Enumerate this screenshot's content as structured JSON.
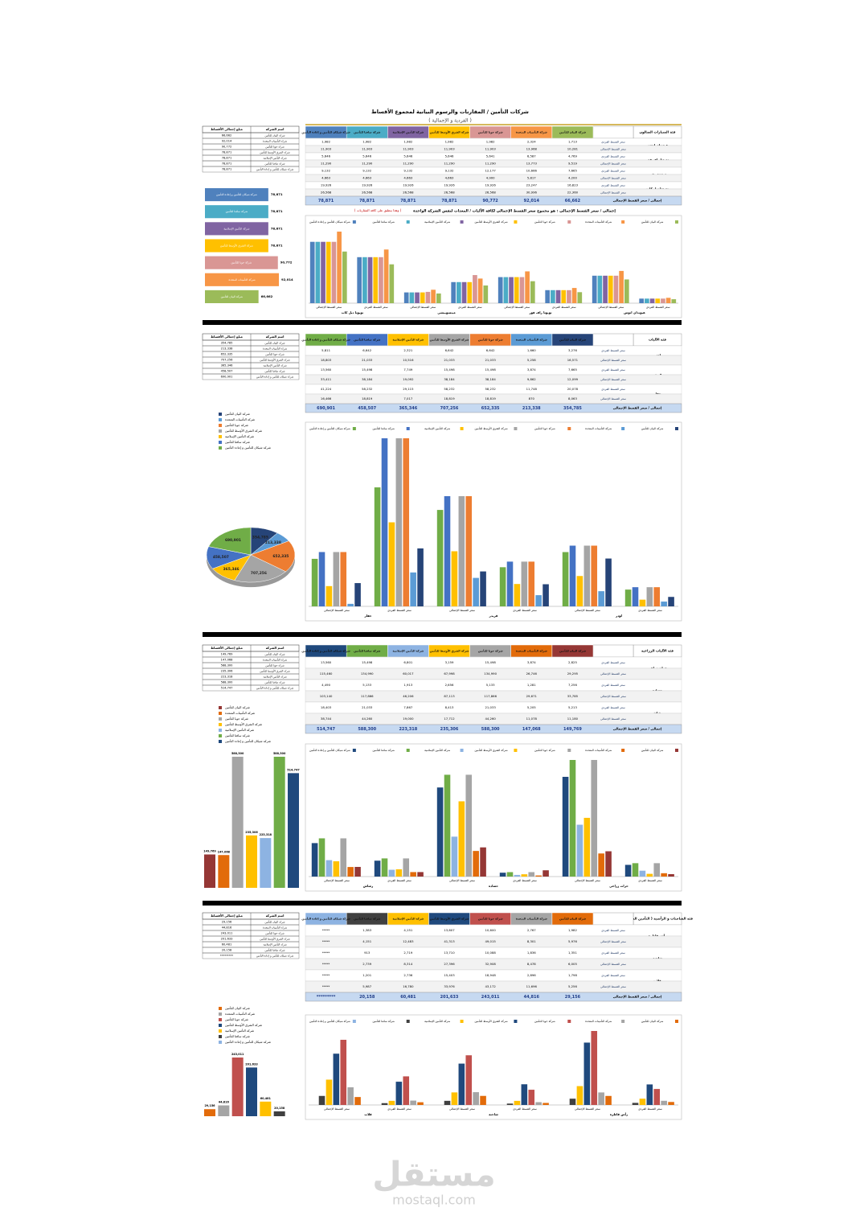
{
  "header": {
    "title": "شركات التأمين / المقارنات والرسوم البيانية لمجموع الأقساط",
    "subtitle": "( الفردية و الإجمالية )"
  },
  "companies": [
    "شركة البيان للتأمين",
    "شركة التأمينات المتحدة",
    "شركة جوبا للتأمين",
    "شركة الشرق الأوسط للتأمين",
    "شركة التأمين الإسلامية",
    "شركة سافنا للتأمين",
    "شركة شيكان للتأمين و إعادة التأمين"
  ],
  "summary_headers": [
    "اسم الشركة",
    "مبلغ إجمالي الأقساط"
  ],
  "sections": [
    {
      "table_title": "فئة السيارات الصالون",
      "colors": [
        "#9bbb59",
        "#f79646",
        "#d99694",
        "#ffc000",
        "#8064a2",
        "#4bacc6",
        "#4f81bd"
      ],
      "rows": [
        {
          "group": "هيونداي اتوس",
          "type": "سعر القسط الفردي",
          "values": [
            1713,
            2324,
            1982,
            1982,
            1982,
            1982,
            1982
          ],
          "value_labels": [
            "1,713",
            "2,324",
            "1,982",
            "1,982",
            "1,982",
            "1,982",
            "1,982"
          ]
        },
        {
          "type": "سعر القسط الإجمالي",
          "values": [
            10281,
            13968,
            11903,
            11903,
            11903,
            11903,
            11903
          ],
          "value_labels": [
            "10,281",
            "13,968",
            "11,903",
            "11,903",
            "11,903",
            "11,903",
            "11,903"
          ]
        },
        {
          "group": "تويوتا راف فور",
          "type": "سعر القسط الفردي",
          "values": [
            4769,
            6587,
            5641,
            5646,
            5646,
            5646,
            5646
          ],
          "value_labels": [
            "4,769",
            "6,587",
            "5,641",
            "5,646",
            "5,646",
            "5,646",
            "5,646"
          ]
        },
        {
          "type": "سعر القسط الإجمالي",
          "values": [
            9519,
            13773,
            11290,
            11290,
            11290,
            11290,
            11290
          ],
          "value_labels": [
            "9,519",
            "13,773",
            "11,290",
            "11,290",
            "11,290",
            "11,290",
            "11,290"
          ]
        },
        {
          "group": "ميتسوبيشي",
          "type": "سعر القسط الفردي",
          "values": [
            7665,
            10666,
            12177,
            9132,
            9132,
            9132,
            9132
          ],
          "value_labels": [
            "7,665",
            "10,666",
            "12,177",
            "9,132",
            "9,132",
            "9,132",
            "9,132"
          ]
        },
        {
          "type": "سعر القسط الإجمالي",
          "values": [
            4200,
            5817,
            4900,
            4663,
            4663,
            4663,
            4663
          ],
          "value_labels": [
            "4,200",
            "5,817",
            "4,900",
            "4,663",
            "4,663",
            "4,663",
            "4,663"
          ]
        },
        {
          "group": "تويوتا دبل كاب",
          "type": "سعر القسط الفردي",
          "values": [
            16823,
            23247,
            19926,
            19926,
            19926,
            19926,
            19926
          ],
          "value_labels": [
            "16,823",
            "23,247",
            "19,926",
            "19,926",
            "19,926",
            "19,926",
            "19,926"
          ]
        },
        {
          "type": "سعر القسط الإجمالي",
          "values": [
            22360,
            30996,
            26568,
            26568,
            26568,
            26568,
            26568
          ],
          "value_labels": [
            "22,360",
            "30,996",
            "26,568",
            "26,568",
            "26,568",
            "26,568",
            "26,568"
          ]
        }
      ],
      "totals_label": "إجمالي / سعر القسط الإجمالي",
      "totals": [
        66662,
        92014,
        90772,
        78871,
        78871,
        78871,
        78871
      ],
      "totals_labels": [
        "66,662",
        "92,014",
        "90,772",
        "78,871",
        "78,871",
        "78,871",
        "78,871"
      ],
      "note": "إجمالي / سعر القسط الإجمالي : هو مجموع سعر القسط الإجمالي لكافة الآليات / المعدات لنفس الشركة الواحدة",
      "note_red": "( وهذا ينطبق على كافة المقارنات )"
    },
    {
      "table_title": "فئة الآليات",
      "colors": [
        "#264478",
        "#5b9bd5",
        "#ed7d31",
        "#a5a5a5",
        "#ffc000",
        "#4472c4",
        "#70ad47"
      ],
      "rows": [
        {
          "group": "لودر",
          "type": "سعر القسط الفردي",
          "values": [
            3276,
            1660,
            6642,
            6642,
            2321,
            6642,
            5811
          ],
          "value_labels": [
            "3,276",
            "1,660",
            "6,642",
            "6,642",
            "2,321",
            "6,642",
            "5,811"
          ]
        },
        {
          "type": "سعر القسط الإجمالي",
          "values": [
            16571,
            5258,
            21033,
            21033,
            10516,
            21033,
            18803
          ],
          "value_labels": [
            "16,571",
            "5,258",
            "21,033",
            "21,033",
            "10,516",
            "21,033",
            "18,803"
          ]
        },
        {
          "group": "قريدر",
          "type": "سعر القسط الفردي",
          "values": [
            7665,
            3874,
            15498,
            15498,
            7749,
            15498,
            13560
          ],
          "value_labels": [
            "7,665",
            "3,874",
            "15,498",
            "15,498",
            "7,749",
            "15,498",
            "13,560"
          ]
        },
        {
          "type": "سعر القسط الإجمالي",
          "values": [
            12099,
            9862,
            38184,
            38184,
            19092,
            38184,
            33411
          ],
          "value_labels": [
            "12,099",
            "9,862",
            "38,184",
            "38,184",
            "19,092",
            "38,184",
            "33,411"
          ]
        },
        {
          "group": "حفار",
          "type": "سعر القسط الفردي",
          "values": [
            20078,
            11748,
            58232,
            58232,
            29115,
            58232,
            41224
          ],
          "value_labels": [
            "20,078",
            "11,748",
            "58,232",
            "58,232",
            "29,115",
            "58,232",
            "41,224"
          ]
        },
        {
          "type": "سعر القسط الإجمالي",
          "values": [
            8063,
            870,
            18819,
            18819,
            7017,
            18819,
            16466
          ],
          "value_labels": [
            "8,063",
            "870",
            "18,819",
            "18,819",
            "7,017",
            "18,819",
            "16,466"
          ]
        }
      ],
      "totals_label": "إجمالي / سعر القسط الإجمالي",
      "totals": [
        354785,
        213338,
        652335,
        707256,
        365346,
        458507,
        690901
      ],
      "totals_labels": [
        "354,785",
        "213,338",
        "652,335",
        "707,256",
        "365,346",
        "458,507",
        "690,901"
      ]
    },
    {
      "table_title": "فئة الآليات الزراعية",
      "colors": [
        "#953735",
        "#e26b0a",
        "#a5a5a5",
        "#ffc000",
        "#8db3e2",
        "#70ad47",
        "#1f497d"
      ],
      "rows": [
        {
          "group": "حراث زراعي",
          "type": "سعر القسط الفردي",
          "values": [
            2825,
            3874,
            15498,
            3159,
            6801,
            15498,
            13560
          ],
          "value_labels": [
            "2,825",
            "3,874",
            "15,498",
            "3,159",
            "6,801",
            "15,498",
            "13,560"
          ]
        },
        {
          "type": "سعر القسط الإجمالي",
          "values": [
            29295,
            26746,
            134990,
            67998,
            60017,
            134990,
            115460
          ],
          "value_labels": [
            "29,295",
            "26,746",
            "134,990",
            "67,998",
            "60,017",
            "134,990",
            "115,460"
          ]
        },
        {
          "group": "حصادة",
          "type": "سعر القسط الفردي",
          "values": [
            7256,
            1281,
            5133,
            2656,
            1913,
            5133,
            4490
          ],
          "value_labels": [
            "7,256",
            "1,281",
            "5,133",
            "2,656",
            "1,913",
            "5,133",
            "4,490"
          ]
        },
        {
          "type": "سعر القسط الإجمالي",
          "values": [
            33785,
            29671,
            117866,
            87113,
            46206,
            117866,
            103140
          ],
          "value_labels": [
            "33,785",
            "29,671",
            "117,866",
            "87,113",
            "46,206",
            "117,866",
            "103,140"
          ]
        },
        {
          "group": "رشاش",
          "type": "سعر القسط الفردي",
          "values": [
            5213,
            5205,
            21033,
            8413,
            7867,
            21033,
            18403
          ],
          "value_labels": [
            "5,213",
            "5,205",
            "21,033",
            "8,413",
            "7,867",
            "21,033",
            "18,403"
          ]
        },
        {
          "type": "سعر القسط الإجمالي",
          "values": [
            11180,
            11078,
            44260,
            17712,
            19000,
            44260,
            38744
          ],
          "value_labels": [
            "11,180",
            "11,078",
            "44,260",
            "17,712",
            "19,000",
            "44,260",
            "38,744"
          ]
        }
      ],
      "totals_label": "إجمالي / سعر القسط الإجمالي",
      "totals": [
        149769,
        147068,
        588300,
        235306,
        223318,
        588300,
        514747
      ],
      "totals_labels": [
        "149,769",
        "147,068",
        "588,300",
        "235,306",
        "223,318",
        "588,300",
        "514,747"
      ]
    },
    {
      "table_title": "فئة الشاحنات و الرأسية ( التأمين الشامل )",
      "colors": [
        "#e26b0a",
        "#a5a5a5",
        "#c0504d",
        "#1f497d",
        "#ffc000",
        "#404040",
        "#8db3e2"
      ],
      "rows": [
        {
          "group": "رأس قاطرة",
          "type": "سعر القسط الفردي",
          "values": [
            1982,
            2767,
            10600,
            13607,
            4151,
            1383,
            null
          ],
          "value_labels": [
            "1,982",
            "2,767",
            "10,600",
            "13,607",
            "4,151",
            "1,383",
            "*****"
          ]
        },
        {
          "type": "سعر القسط الإجمالي",
          "values": [
            5976,
            8301,
            49015,
            41313,
            12483,
            4151,
            null
          ],
          "value_labels": [
            "5,976",
            "8,301",
            "49,015",
            "41,313",
            "12,483",
            "4,151",
            "*****"
          ]
        },
        {
          "group": "شاحنة",
          "type": "سعر القسط الفردي",
          "values": [
            1351,
            1836,
            10088,
            13710,
            2719,
            913,
            null
          ],
          "value_labels": [
            "1,351",
            "1,836",
            "10,088",
            "13,710",
            "2,719",
            "913",
            "*****"
          ]
        },
        {
          "type": "سعر القسط الإجمالي",
          "values": [
            6005,
            8478,
            32908,
            27396,
            8314,
            2739,
            null
          ],
          "value_labels": [
            "6,005",
            "8,478",
            "32,908",
            "27,396",
            "8,314",
            "2,739",
            "*****"
          ]
        },
        {
          "group": "قلاب",
          "type": "سعر القسط الفردي",
          "values": [
            1798,
            2896,
            18948,
            15403,
            2736,
            1201,
            null
          ],
          "value_labels": [
            "1,798",
            "2,896",
            "18,948",
            "15,403",
            "2,736",
            "1,201",
            "*****"
          ]
        },
        {
          "type": "سعر القسط الإجمالي",
          "values": [
            5256,
            11696,
            43172,
            33976,
            16780,
            5987,
            null
          ],
          "value_labels": [
            "5,256",
            "11,696",
            "43,172",
            "33,976",
            "16,780",
            "5,987",
            "*****"
          ]
        }
      ],
      "totals_label": "إجمالي / سعر القسط الإجمالي",
      "totals": [
        29156,
        44816,
        243011,
        201633,
        60481,
        20158,
        null
      ],
      "totals_labels": [
        "29,156",
        "44,816",
        "243,011",
        "201,633",
        "60,481",
        "20,158",
        "*********"
      ]
    }
  ],
  "watermark": {
    "name": "مستقل",
    "url": "mostaql.com"
  }
}
